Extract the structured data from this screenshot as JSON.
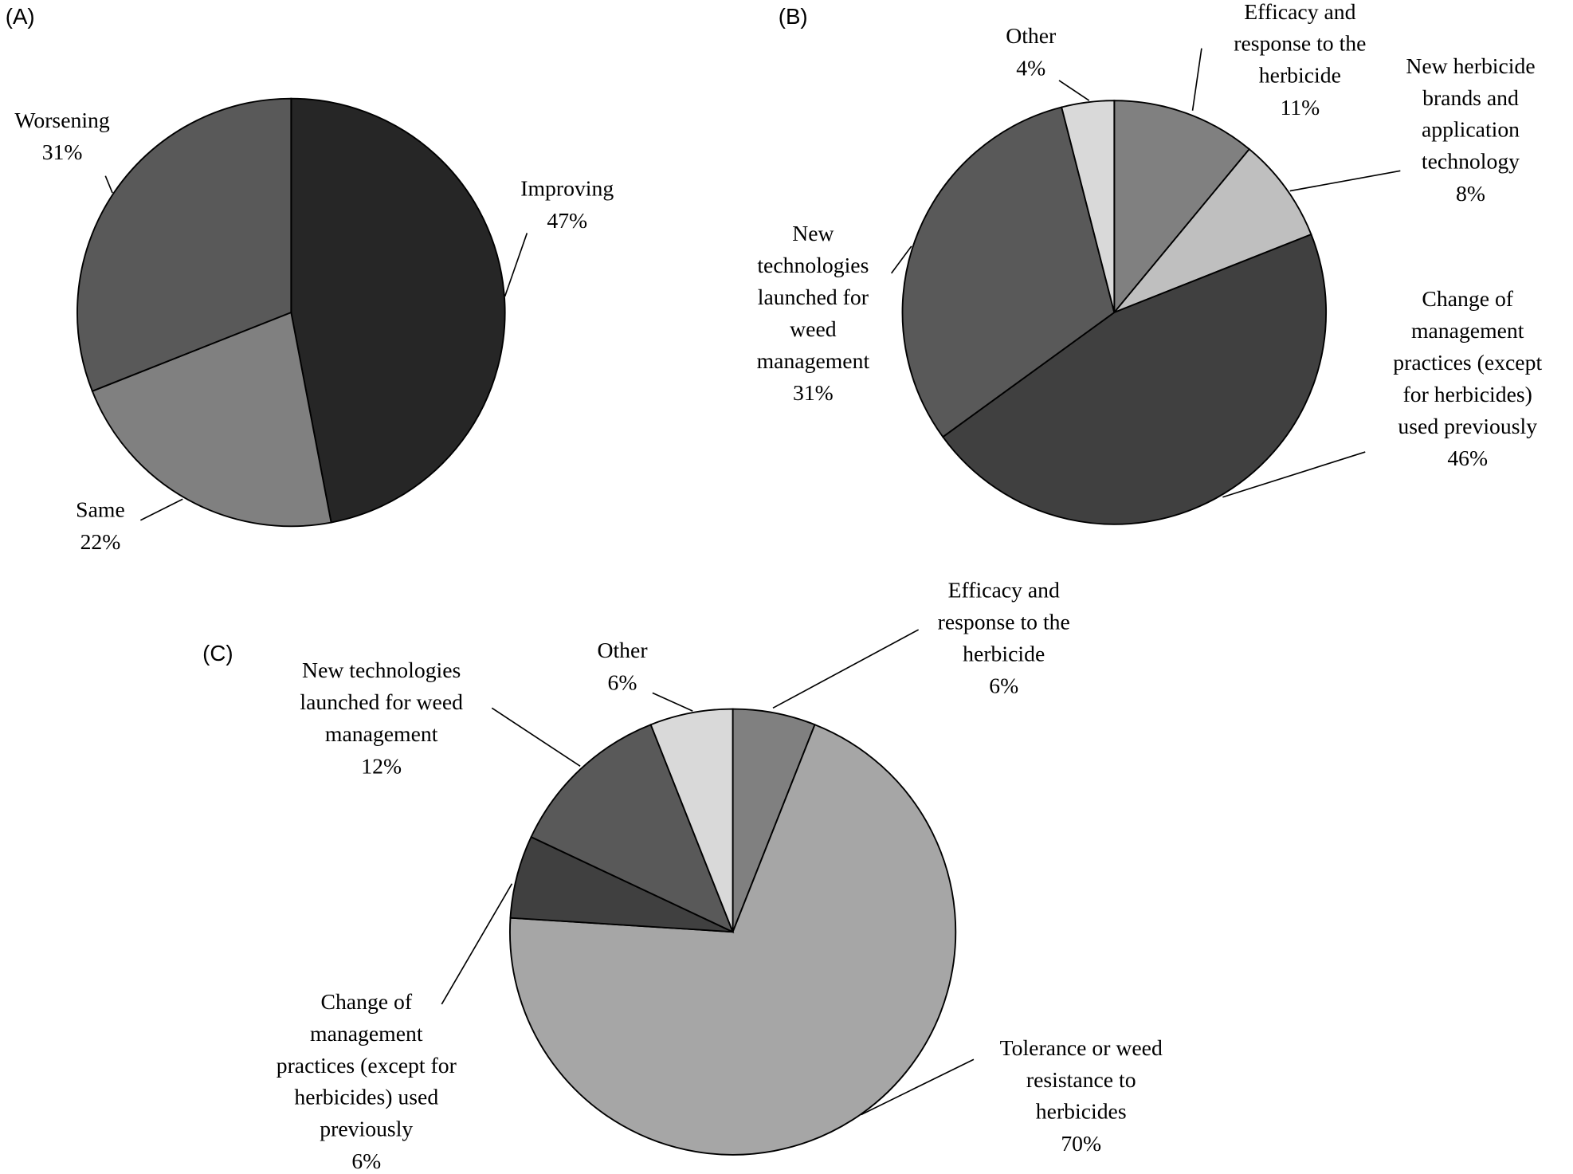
{
  "chart_data": [
    {
      "type": "pie",
      "title": "(A)",
      "categories": [
        "Improving",
        "Same",
        "Worsening"
      ],
      "values": [
        47,
        22,
        31
      ],
      "value_labels": [
        "47%",
        "22%",
        "31%"
      ],
      "colors": [
        "#262626",
        "#808080",
        "#595959"
      ]
    },
    {
      "type": "pie",
      "title": "(B)",
      "categories": [
        "Efficacy and response to the herbicide",
        "New herbicide brands and application technology",
        "Change of management practices (except for herbicides) used previously",
        "New technologies launched for weed management",
        "Other"
      ],
      "values": [
        11,
        8,
        46,
        31,
        4
      ],
      "value_labels": [
        "11%",
        "8%",
        "46%",
        "31%",
        "4%"
      ],
      "colors": [
        "#808080",
        "#bfbfbf",
        "#404040",
        "#595959",
        "#d9d9d9"
      ]
    },
    {
      "type": "pie",
      "title": "(C)",
      "categories": [
        "Efficacy and response to the herbicide",
        "Tolerance or weed resistance to herbicides",
        "Change of management practices (except for herbicides) used previously",
        "New technologies launched for weed management",
        "Other"
      ],
      "values": [
        6,
        70,
        6,
        12,
        6
      ],
      "value_labels": [
        "6%",
        "70%",
        "6%",
        "12%",
        "6%"
      ],
      "colors": [
        "#808080",
        "#a6a6a6",
        "#404040",
        "#595959",
        "#d9d9d9"
      ]
    }
  ]
}
